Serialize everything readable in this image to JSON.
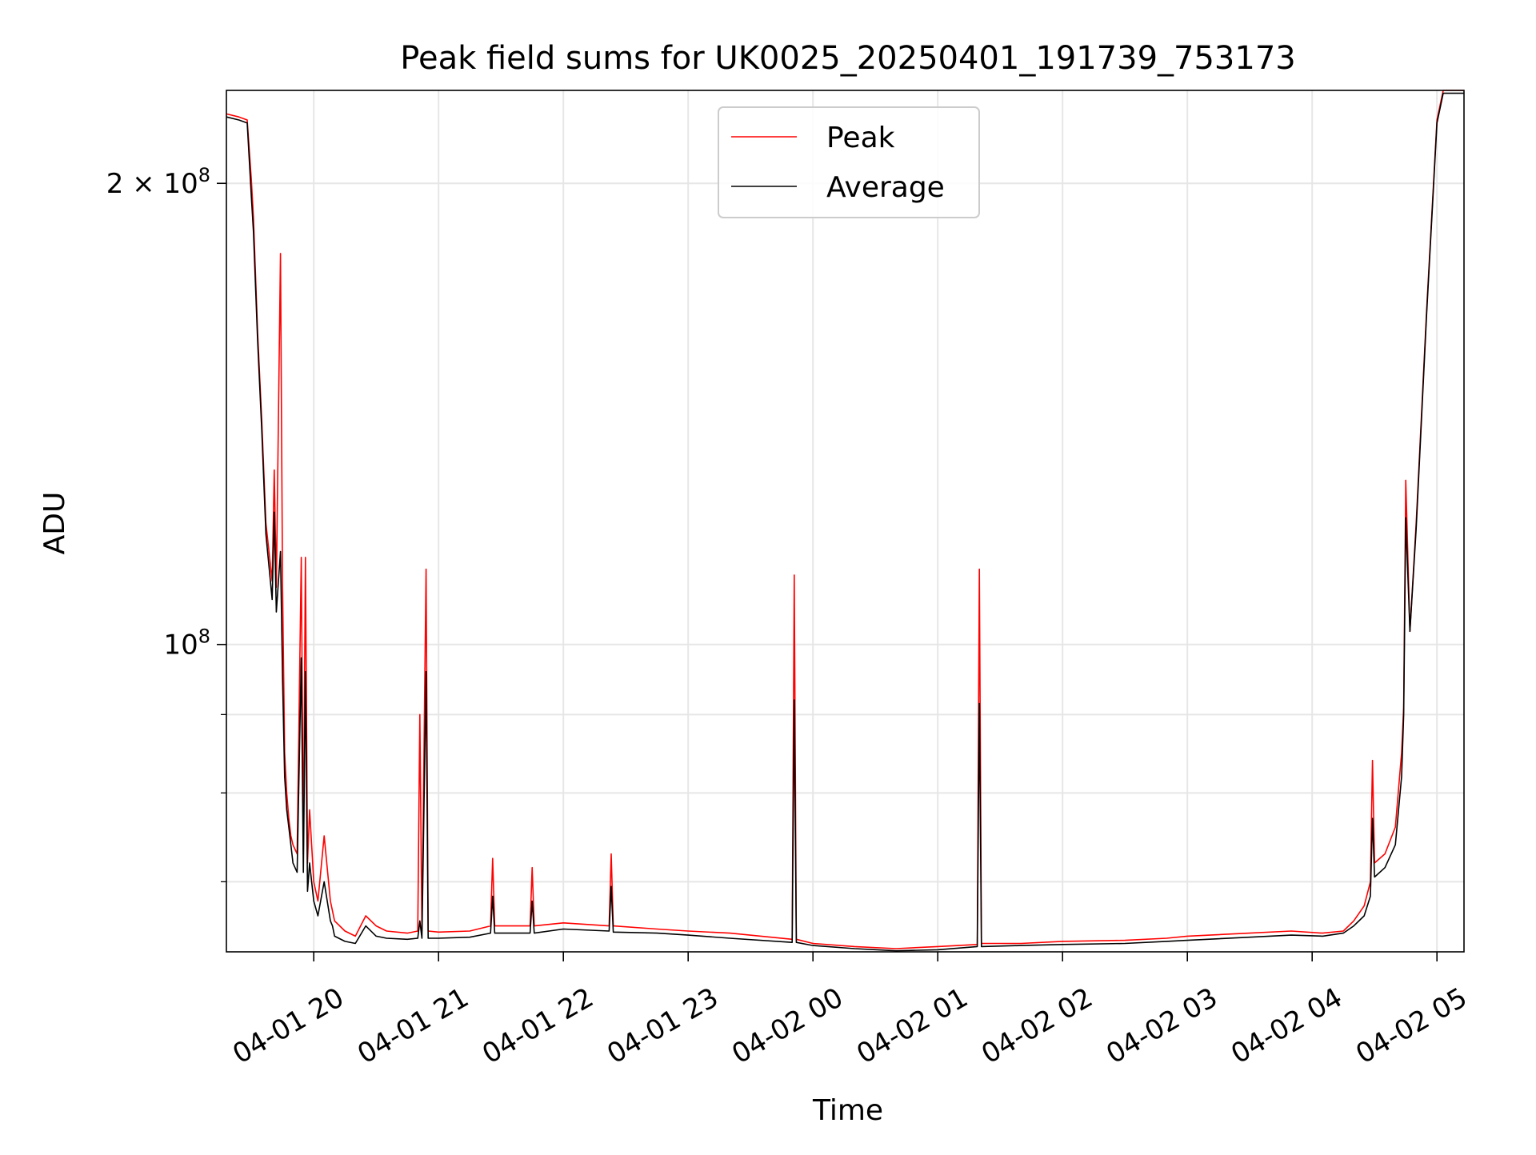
{
  "chart_data": {
    "type": "line",
    "title": "Peak field sums for UK0025_20250401_191739_753173",
    "xlabel": "Time",
    "ylabel": "ADU",
    "x_unit": "datetime",
    "xlim": [
      "2025-04-01 19:18",
      "2025-04-02 05:13"
    ],
    "ylim": [
      63000000,
      230000000
    ],
    "yscale": "log",
    "grid": true,
    "legend_position": "top-center",
    "x_tick_labels": [
      "04-01 20",
      "04-01 21",
      "04-01 22",
      "04-01 23",
      "04-02 00",
      "04-02 01",
      "04-02 02",
      "04-02 03",
      "04-02 04",
      "04-02 05"
    ],
    "x_ticks": [
      "2025-04-01 20:00",
      "2025-04-01 21:00",
      "2025-04-01 22:00",
      "2025-04-01 23:00",
      "2025-04-02 00:00",
      "2025-04-02 01:00",
      "2025-04-02 02:00",
      "2025-04-02 03:00",
      "2025-04-02 04:00",
      "2025-04-02 05:00"
    ],
    "y_major_ticks": [
      {
        "value": 100000000,
        "mantissa": "",
        "exponent": "8"
      },
      {
        "value": 200000000,
        "mantissa": "2 × ",
        "exponent": "8"
      }
    ],
    "y_minor_ticks": [
      70000000,
      80000000,
      90000000
    ],
    "series": [
      {
        "name": "Peak",
        "color": "#ff0000",
        "x": [
          "2025-04-01 19:18",
          "2025-04-01 19:24",
          "2025-04-01 19:28",
          "2025-04-01 19:30",
          "2025-04-01 19:31",
          "2025-04-01 19:33",
          "2025-04-01 19:35",
          "2025-04-01 19:37",
          "2025-04-01 19:40",
          "2025-04-01 19:41",
          "2025-04-01 19:42",
          "2025-04-01 19:44",
          "2025-04-01 19:45",
          "2025-04-01 19:46",
          "2025-04-01 19:47",
          "2025-04-01 19:48",
          "2025-04-01 19:49",
          "2025-04-01 19:50",
          "2025-04-01 19:52",
          "2025-04-01 19:54",
          "2025-04-01 19:55",
          "2025-04-01 19:56",
          "2025-04-01 19:57",
          "2025-04-01 19:58",
          "2025-04-01 20:00",
          "2025-04-01 20:02",
          "2025-04-01 20:05",
          "2025-04-01 20:08",
          "2025-04-01 20:09",
          "2025-04-01 20:10",
          "2025-04-01 20:15",
          "2025-04-01 20:20",
          "2025-04-01 20:25",
          "2025-04-01 20:30",
          "2025-04-01 20:35",
          "2025-04-01 20:45",
          "2025-04-01 20:50",
          "2025-04-01 20:51",
          "2025-04-01 20:52",
          "2025-04-01 20:54",
          "2025-04-01 20:55",
          "2025-04-01 21:00",
          "2025-04-01 21:15",
          "2025-04-01 21:25",
          "2025-04-01 21:26",
          "2025-04-01 21:27",
          "2025-04-01 21:44",
          "2025-04-01 21:45",
          "2025-04-01 21:46",
          "2025-04-01 22:00",
          "2025-04-01 22:22",
          "2025-04-01 22:23",
          "2025-04-01 22:24",
          "2025-04-01 22:45",
          "2025-04-01 23:00",
          "2025-04-01 23:20",
          "2025-04-01 23:50",
          "2025-04-01 23:51",
          "2025-04-01 23:52",
          "2025-04-02 00:00",
          "2025-04-02 00:20",
          "2025-04-02 00:40",
          "2025-04-02 01:00",
          "2025-04-02 01:19",
          "2025-04-02 01:20",
          "2025-04-02 01:21",
          "2025-04-02 01:40",
          "2025-04-02 02:00",
          "2025-04-02 02:30",
          "2025-04-02 02:50",
          "2025-04-02 03:00",
          "2025-04-02 03:30",
          "2025-04-02 03:50",
          "2025-04-02 04:05",
          "2025-04-02 04:15",
          "2025-04-02 04:20",
          "2025-04-02 04:25",
          "2025-04-02 04:28",
          "2025-04-02 04:29",
          "2025-04-02 04:30",
          "2025-04-02 04:35",
          "2025-04-02 04:40",
          "2025-04-02 04:43",
          "2025-04-02 04:44",
          "2025-04-02 04:45",
          "2025-04-02 04:47",
          "2025-04-02 04:50",
          "2025-04-02 04:55",
          "2025-04-02 05:00",
          "2025-04-02 05:03",
          "2025-04-02 05:13"
        ],
        "values": [
          222000000,
          221000000,
          220000000,
          201000000,
          190000000,
          160000000,
          140000000,
          120000000,
          110000000,
          130000000,
          109000000,
          180000000,
          109000000,
          85000000,
          80000000,
          77000000,
          75000000,
          74000000,
          73000000,
          114000000,
          73000000,
          114000000,
          72000000,
          78000000,
          70000000,
          68000000,
          75000000,
          68000000,
          67000000,
          66000000,
          65000000,
          64500000,
          66500000,
          65500000,
          65000000,
          64800000,
          65000000,
          90000000,
          65000000,
          112000000,
          65000000,
          64900000,
          65000000,
          65500000,
          72500000,
          65500000,
          65500000,
          71500000,
          65500000,
          65800000,
          65500000,
          73000000,
          65500000,
          65200000,
          65000000,
          64800000,
          64200000,
          111000000,
          64200000,
          63800000,
          63500000,
          63300000,
          63500000,
          63700000,
          112000000,
          63800000,
          63800000,
          64000000,
          64100000,
          64300000,
          64500000,
          64800000,
          65000000,
          64800000,
          65000000,
          66000000,
          67500000,
          70000000,
          84000000,
          72000000,
          73000000,
          76000000,
          85000000,
          91000000,
          128000000,
          102000000,
          120000000,
          165000000,
          220000000,
          230000000,
          230000000
        ]
      },
      {
        "name": "Average",
        "color": "#000000",
        "x": [
          "2025-04-01 19:18",
          "2025-04-01 19:24",
          "2025-04-01 19:28",
          "2025-04-01 19:30",
          "2025-04-01 19:31",
          "2025-04-01 19:33",
          "2025-04-01 19:35",
          "2025-04-01 19:37",
          "2025-04-01 19:40",
          "2025-04-01 19:41",
          "2025-04-01 19:42",
          "2025-04-01 19:44",
          "2025-04-01 19:45",
          "2025-04-01 19:46",
          "2025-04-01 19:47",
          "2025-04-01 19:48",
          "2025-04-01 19:49",
          "2025-04-01 19:50",
          "2025-04-01 19:52",
          "2025-04-01 19:54",
          "2025-04-01 19:55",
          "2025-04-01 19:56",
          "2025-04-01 19:57",
          "2025-04-01 19:58",
          "2025-04-01 20:00",
          "2025-04-01 20:02",
          "2025-04-01 20:05",
          "2025-04-01 20:08",
          "2025-04-01 20:09",
          "2025-04-01 20:10",
          "2025-04-01 20:15",
          "2025-04-01 20:20",
          "2025-04-01 20:25",
          "2025-04-01 20:30",
          "2025-04-01 20:35",
          "2025-04-01 20:45",
          "2025-04-01 20:50",
          "2025-04-01 20:51",
          "2025-04-01 20:52",
          "2025-04-01 20:54",
          "2025-04-01 20:55",
          "2025-04-01 21:00",
          "2025-04-01 21:15",
          "2025-04-01 21:25",
          "2025-04-01 21:26",
          "2025-04-01 21:27",
          "2025-04-01 21:44",
          "2025-04-01 21:45",
          "2025-04-01 21:46",
          "2025-04-01 22:00",
          "2025-04-01 22:22",
          "2025-04-01 22:23",
          "2025-04-01 22:24",
          "2025-04-01 22:45",
          "2025-04-01 23:00",
          "2025-04-01 23:20",
          "2025-04-01 23:50",
          "2025-04-01 23:51",
          "2025-04-01 23:52",
          "2025-04-02 00:00",
          "2025-04-02 00:20",
          "2025-04-02 00:40",
          "2025-04-02 01:00",
          "2025-04-02 01:19",
          "2025-04-02 01:20",
          "2025-04-02 01:21",
          "2025-04-02 01:40",
          "2025-04-02 02:00",
          "2025-04-02 02:30",
          "2025-04-02 02:50",
          "2025-04-02 03:00",
          "2025-04-02 03:30",
          "2025-04-02 03:50",
          "2025-04-02 04:05",
          "2025-04-02 04:15",
          "2025-04-02 04:20",
          "2025-04-02 04:25",
          "2025-04-02 04:28",
          "2025-04-02 04:29",
          "2025-04-02 04:30",
          "2025-04-02 04:35",
          "2025-04-02 04:40",
          "2025-04-02 04:43",
          "2025-04-02 04:44",
          "2025-04-02 04:45",
          "2025-04-02 04:47",
          "2025-04-02 04:50",
          "2025-04-02 04:55",
          "2025-04-02 05:00",
          "2025-04-02 05:03",
          "2025-04-02 05:13"
        ],
        "values": [
          221000000,
          220000000,
          219000000,
          196000000,
          186000000,
          158000000,
          138000000,
          118000000,
          107000000,
          122000000,
          105000000,
          115000000,
          95000000,
          82000000,
          78000000,
          76000000,
          74000000,
          72000000,
          71000000,
          98000000,
          71000000,
          96000000,
          69000000,
          72000000,
          68000000,
          66500000,
          70000000,
          66000000,
          65500000,
          64500000,
          64000000,
          63800000,
          65500000,
          64500000,
          64300000,
          64200000,
          64300000,
          66000000,
          64300000,
          96000000,
          64300000,
          64300000,
          64400000,
          64800000,
          68500000,
          64800000,
          64800000,
          68000000,
          64800000,
          65200000,
          65000000,
          69500000,
          64900000,
          64800000,
          64600000,
          64300000,
          63900000,
          92000000,
          63900000,
          63600000,
          63300000,
          63100000,
          63200000,
          63500000,
          91500000,
          63500000,
          63600000,
          63700000,
          63800000,
          64000000,
          64100000,
          64400000,
          64600000,
          64500000,
          64800000,
          65500000,
          66500000,
          68500000,
          77000000,
          70500000,
          71500000,
          74000000,
          82000000,
          90000000,
          121000000,
          102000000,
          119000000,
          164000000,
          219000000,
          229000000,
          229000000
        ]
      }
    ]
  }
}
